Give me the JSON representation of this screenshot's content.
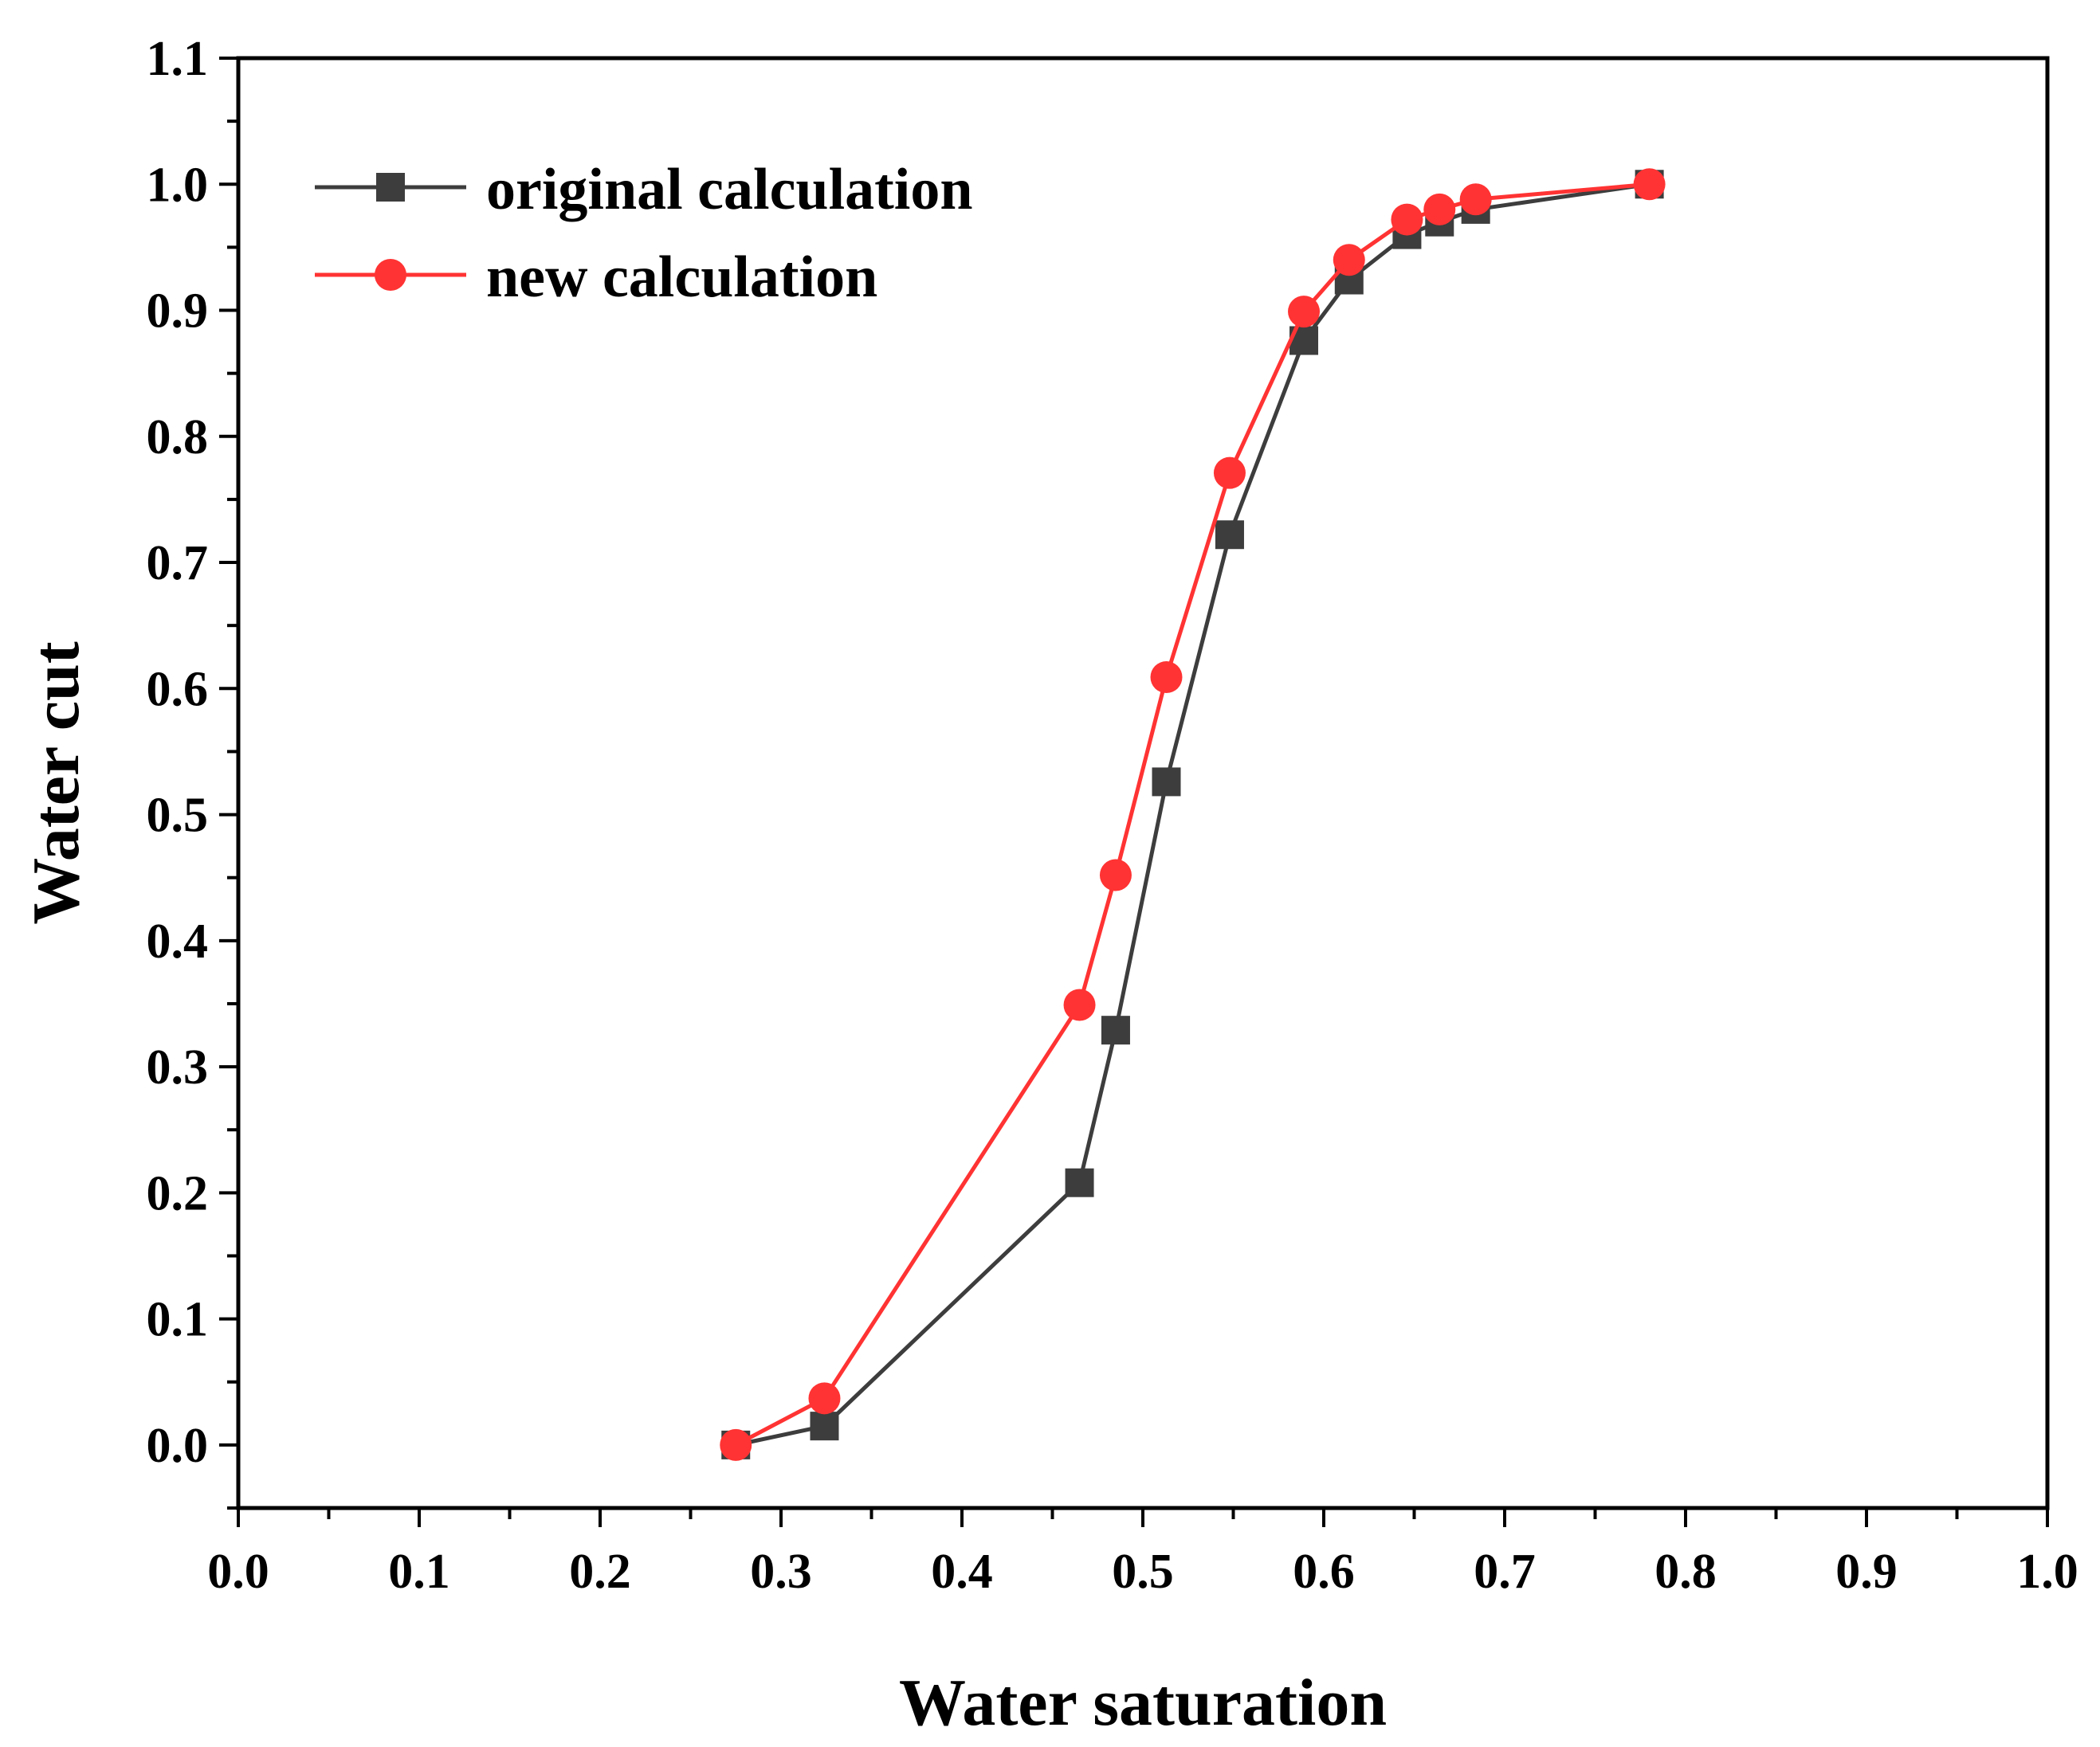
{
  "chart_data": {
    "type": "line",
    "title": "",
    "xlabel": "Water saturation",
    "ylabel": "Water cut",
    "xlim": [
      0.0,
      1.0
    ],
    "ylim": [
      -0.05,
      1.1
    ],
    "xticks": [
      "0.0",
      "0.1",
      "0.2",
      "0.3",
      "0.4",
      "0.5",
      "0.6",
      "0.7",
      "0.8",
      "0.9",
      "1.0"
    ],
    "yticks": [
      "0.0",
      "0.1",
      "0.2",
      "0.3",
      "0.4",
      "0.5",
      "0.6",
      "0.7",
      "0.8",
      "0.9",
      "1.0",
      "1.1"
    ],
    "legend_position": "top-left",
    "series": [
      {
        "name": "original calculation",
        "color": "#3d3d3d",
        "marker": "square",
        "x": [
          0.275,
          0.324,
          0.465,
          0.485,
          0.513,
          0.548,
          0.589,
          0.614,
          0.646,
          0.664,
          0.684,
          0.78
        ],
        "y": [
          0.0,
          0.015,
          0.208,
          0.329,
          0.526,
          0.722,
          0.876,
          0.924,
          0.96,
          0.97,
          0.98,
          1.0
        ]
      },
      {
        "name": "new calculation",
        "color": "#ff3333",
        "marker": "circle",
        "x": [
          0.275,
          0.324,
          0.465,
          0.485,
          0.513,
          0.548,
          0.589,
          0.614,
          0.646,
          0.664,
          0.684,
          0.78
        ],
        "y": [
          0.0,
          0.037,
          0.349,
          0.452,
          0.609,
          0.771,
          0.899,
          0.94,
          0.972,
          0.98,
          0.988,
          1.0
        ]
      }
    ]
  }
}
